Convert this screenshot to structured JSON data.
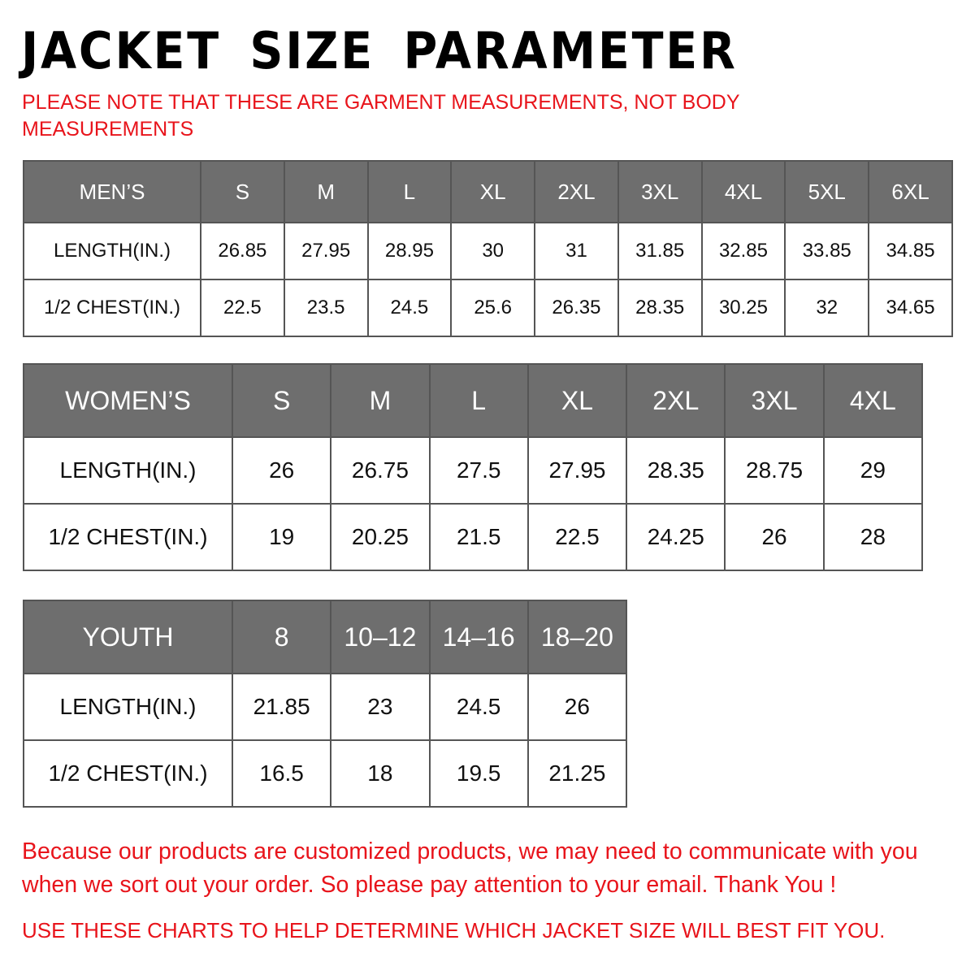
{
  "title": "JACKET SIZE PARAMETER",
  "note": "PLEASE NOTE THAT THESE ARE GARMENT MEASUREMENTS, NOT BODY MEASUREMENTS",
  "colors": {
    "header_bg": "#6e6e6e",
    "accent_red": "#e8141b"
  },
  "mens": {
    "header": [
      "MEN’S",
      "S",
      "M",
      "L",
      "XL",
      "2XL",
      "3XL",
      "4XL",
      "5XL",
      "6XL"
    ],
    "rows": [
      [
        "LENGTH(IN.)",
        "26.85",
        "27.95",
        "28.95",
        "30",
        "31",
        "31.85",
        "32.85",
        "33.85",
        "34.85"
      ],
      [
        "1/2 CHEST(IN.)",
        "22.5",
        "23.5",
        "24.5",
        "25.6",
        "26.35",
        "28.35",
        "30.25",
        "32",
        "34.65"
      ]
    ]
  },
  "womens": {
    "header": [
      "WOMEN’S",
      "S",
      "M",
      "L",
      "XL",
      "2XL",
      "3XL",
      "4XL"
    ],
    "rows": [
      [
        "LENGTH(IN.)",
        "26",
        "26.75",
        "27.5",
        "27.95",
        "28.35",
        "28.75",
        "29"
      ],
      [
        "1/2 CHEST(IN.)",
        "19",
        "20.25",
        "21.5",
        "22.5",
        "24.25",
        "26",
        "28"
      ]
    ]
  },
  "youth": {
    "header": [
      "YOUTH",
      "8",
      "10–12",
      "14–16",
      "18–20"
    ],
    "rows": [
      [
        "LENGTH(IN.)",
        "21.85",
        "23",
        "24.5",
        "26"
      ],
      [
        "1/2 CHEST(IN.)",
        "16.5",
        "18",
        "19.5",
        "21.25"
      ]
    ]
  },
  "footer": "Because our products are customized products, we may need to communicate with you when we sort out your order. So please pay attention to your email. Thank You !",
  "footer2": "USE THESE CHARTS TO HELP DETERMINE WHICH JACKET SIZE WILL BEST FIT YOU."
}
